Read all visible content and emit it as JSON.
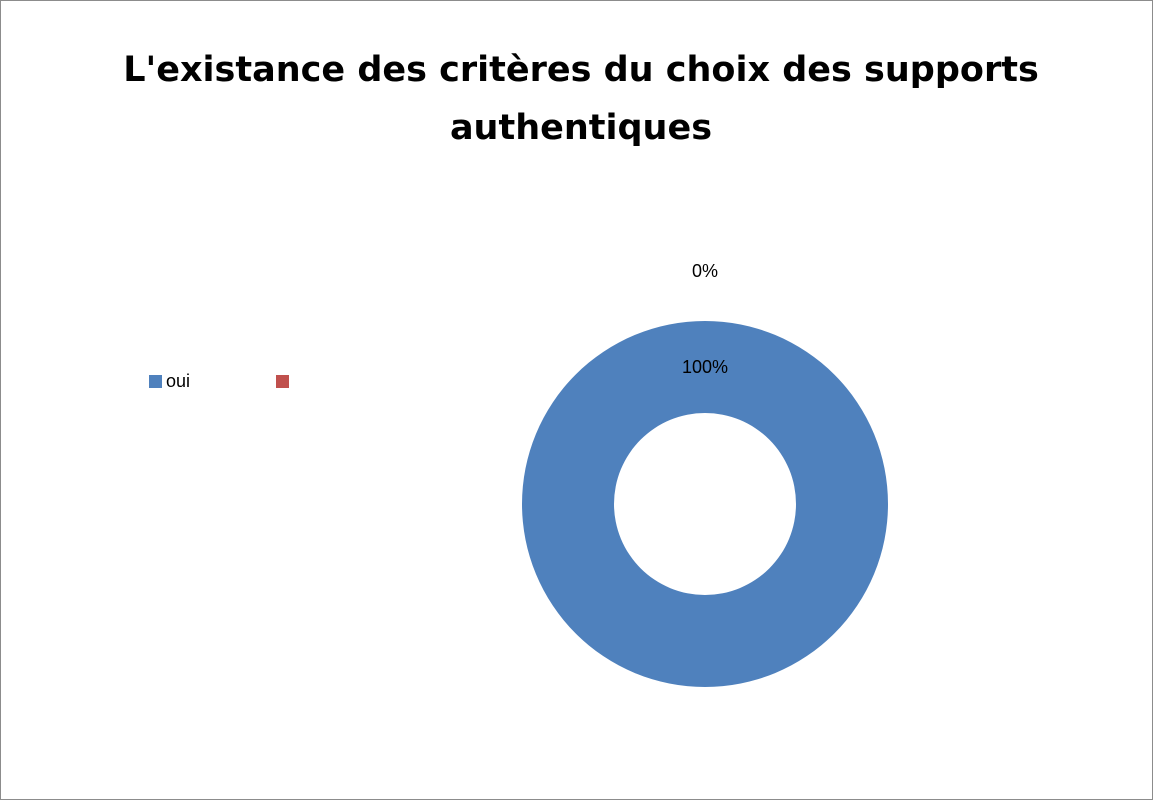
{
  "chart_data": {
    "type": "pie",
    "variant": "doughnut",
    "title": "L'existance des critères du choix des supports authentiques",
    "categories": [
      "oui",
      ""
    ],
    "values": [
      100,
      0
    ],
    "data_labels": [
      "100%",
      "0%"
    ],
    "colors": [
      "#4f81bd",
      "#c0504d"
    ],
    "legend": {
      "position": "left",
      "entries": [
        "oui",
        ""
      ]
    },
    "grid": false
  }
}
